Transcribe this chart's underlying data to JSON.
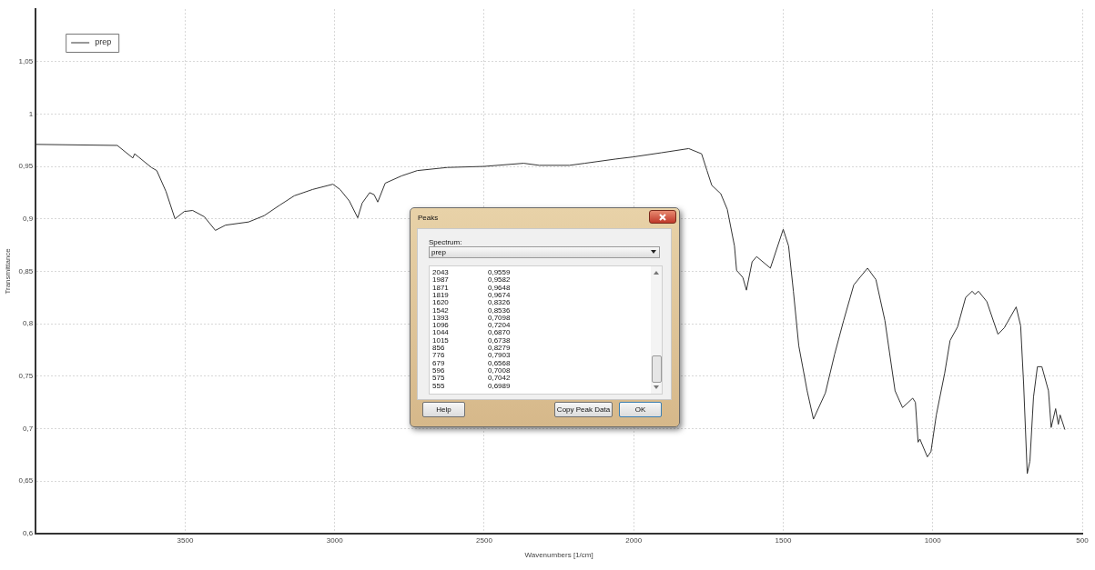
{
  "chart_data": {
    "type": "line",
    "xlabel": "Wavenumbers [1/cm]",
    "ylabel": "Transmittance",
    "xlim": [
      4000,
      500
    ],
    "xticks": [
      3500,
      3000,
      2500,
      2000,
      1500,
      1000,
      500
    ],
    "ylim": [
      0.6,
      1.1
    ],
    "yticks": [
      {
        "value": 0.6,
        "label": "0,6"
      },
      {
        "value": 0.65,
        "label": "0,65"
      },
      {
        "value": 0.7,
        "label": "0,7"
      },
      {
        "value": 0.75,
        "label": "0,75"
      },
      {
        "value": 0.8,
        "label": "0,8"
      },
      {
        "value": 0.85,
        "label": "0,85"
      },
      {
        "value": 0.9,
        "label": "0,9"
      },
      {
        "value": 0.95,
        "label": "0,95"
      },
      {
        "value": 1,
        "label": "1"
      },
      {
        "value": 1.05,
        "label": "1,05"
      }
    ],
    "grid": true,
    "legend": "top left",
    "line_style": "solid",
    "series": [
      {
        "name": "prep",
        "color": "#333333",
        "x": [
          4000,
          3727,
          3675,
          3669,
          3656,
          3613,
          3595,
          3564,
          3534,
          3503,
          3475,
          3436,
          3399,
          3365,
          3288,
          3236,
          3184,
          3135,
          3074,
          3006,
          2982,
          2951,
          2923,
          2908,
          2883,
          2868,
          2856,
          2831,
          2776,
          2724,
          2623,
          2500,
          2368,
          2316,
          2215,
          2163,
          2061,
          2003,
          1908,
          1816,
          1773,
          1755,
          1739,
          1709,
          1687,
          1663,
          1656,
          1635,
          1623,
          1604,
          1589,
          1543,
          1500,
          1482,
          1466,
          1448,
          1420,
          1399,
          1359,
          1328,
          1298,
          1264,
          1218,
          1190,
          1160,
          1126,
          1101,
          1067,
          1058,
          1049,
          1043,
          1018,
          1006,
          988,
          960,
          942,
          917,
          890,
          868,
          859,
          847,
          819,
          782,
          761,
          721,
          706,
          696,
          684,
          675,
          663,
          650,
          635,
          613,
          604,
          589,
          580,
          574,
          558
        ],
        "values": [
          0.971,
          0.97,
          0.958,
          0.962,
          0.959,
          0.949,
          0.946,
          0.926,
          0.9,
          0.907,
          0.908,
          0.902,
          0.889,
          0.894,
          0.897,
          0.903,
          0.913,
          0.922,
          0.928,
          0.933,
          0.928,
          0.917,
          0.901,
          0.915,
          0.925,
          0.923,
          0.916,
          0.934,
          0.941,
          0.946,
          0.949,
          0.95,
          0.953,
          0.951,
          0.951,
          0.953,
          0.957,
          0.959,
          0.963,
          0.967,
          0.962,
          0.946,
          0.932,
          0.924,
          0.909,
          0.874,
          0.851,
          0.844,
          0.832,
          0.859,
          0.864,
          0.853,
          0.89,
          0.874,
          0.831,
          0.779,
          0.736,
          0.709,
          0.734,
          0.771,
          0.803,
          0.837,
          0.853,
          0.842,
          0.803,
          0.736,
          0.72,
          0.729,
          0.725,
          0.687,
          0.69,
          0.673,
          0.678,
          0.713,
          0.753,
          0.784,
          0.797,
          0.825,
          0.831,
          0.828,
          0.831,
          0.821,
          0.79,
          0.796,
          0.816,
          0.798,
          0.742,
          0.657,
          0.669,
          0.73,
          0.759,
          0.759,
          0.736,
          0.701,
          0.719,
          0.704,
          0.713,
          0.699
        ]
      }
    ],
    "annotations": [
      "Peaks",
      "Spectrum:",
      "prep",
      "2043",
      "0,9559",
      "1987",
      "0,9582",
      "1871",
      "0,9648",
      "1819",
      "0,9674",
      "1620",
      "0,8326",
      "1542",
      "0,8536",
      "1393",
      "0,7098",
      "1096",
      "0,7204",
      "1044",
      "0,6870",
      "1015",
      "0,6738",
      "856",
      "0,8279",
      "776",
      "0,7903",
      "679",
      "0,6568",
      "596",
      "0,7008",
      "575",
      "0,7042",
      "555",
      "0,6989",
      "Help",
      "Copy Peak Data",
      "OK"
    ]
  }
}
